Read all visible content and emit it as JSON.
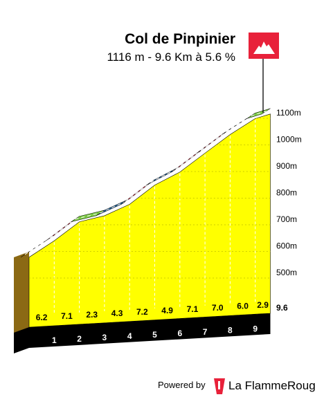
{
  "header": {
    "title": "Col de Pinpinier",
    "subtitle": "1116 m - 9.6 Km à 5.6 %"
  },
  "chart_data": {
    "type": "area",
    "title": "Col de Pinpinier",
    "subtitle": "1116 m - 9.6 Km à 5.6 %",
    "x_unit": "km",
    "y_unit": "m",
    "x": [
      0,
      1,
      2,
      3,
      4,
      5,
      6,
      7,
      8,
      9,
      9.6
    ],
    "altitude": [
      578,
      640,
      711,
      734,
      777,
      849,
      898,
      969,
      1039,
      1099,
      1116
    ],
    "segments": [
      {
        "km": 1,
        "grade": 6.2,
        "label": "6.2",
        "color": "#e8213a"
      },
      {
        "km": 2,
        "grade": 7.1,
        "label": "7.1",
        "color": "#e8213a"
      },
      {
        "km": 3,
        "grade": 2.3,
        "label": "2.3",
        "color": "#7ac943"
      },
      {
        "km": 4,
        "grade": 4.3,
        "label": "4.3",
        "color": "#1f5a8a"
      },
      {
        "km": 5,
        "grade": 7.2,
        "label": "7.2",
        "color": "#e8213a"
      },
      {
        "km": 6,
        "grade": 4.9,
        "label": "4.9",
        "color": "#1f5a8a"
      },
      {
        "km": 7,
        "grade": 7.1,
        "label": "7.1",
        "color": "#e8213a"
      },
      {
        "km": 8,
        "grade": 7.0,
        "label": "7.0",
        "color": "#e8213a"
      },
      {
        "km": 9,
        "grade": 6.0,
        "label": "6.0",
        "color": "#1f5a8a"
      },
      {
        "km": 9.6,
        "grade": 2.9,
        "label": "2.9",
        "color": "#7ac943"
      }
    ],
    "km_ticks": [
      "1",
      "2",
      "3",
      "4",
      "5",
      "6",
      "7",
      "8",
      "9"
    ],
    "end_label": "9.6",
    "y_ticks": [
      500,
      600,
      700,
      800,
      900,
      1000,
      1100
    ],
    "y_tick_labels": [
      "500m",
      "600m",
      "700m",
      "800m",
      "900m",
      "1000m",
      "1100m"
    ],
    "ylim": [
      400,
      1116
    ],
    "colors": {
      "fill": "#ffff00",
      "base": "#000000",
      "side": "#8b6914",
      "summit_flag": "#e8213a"
    }
  },
  "footer": {
    "powered_by": "Powered by",
    "brand": "La FlammeRouge"
  }
}
